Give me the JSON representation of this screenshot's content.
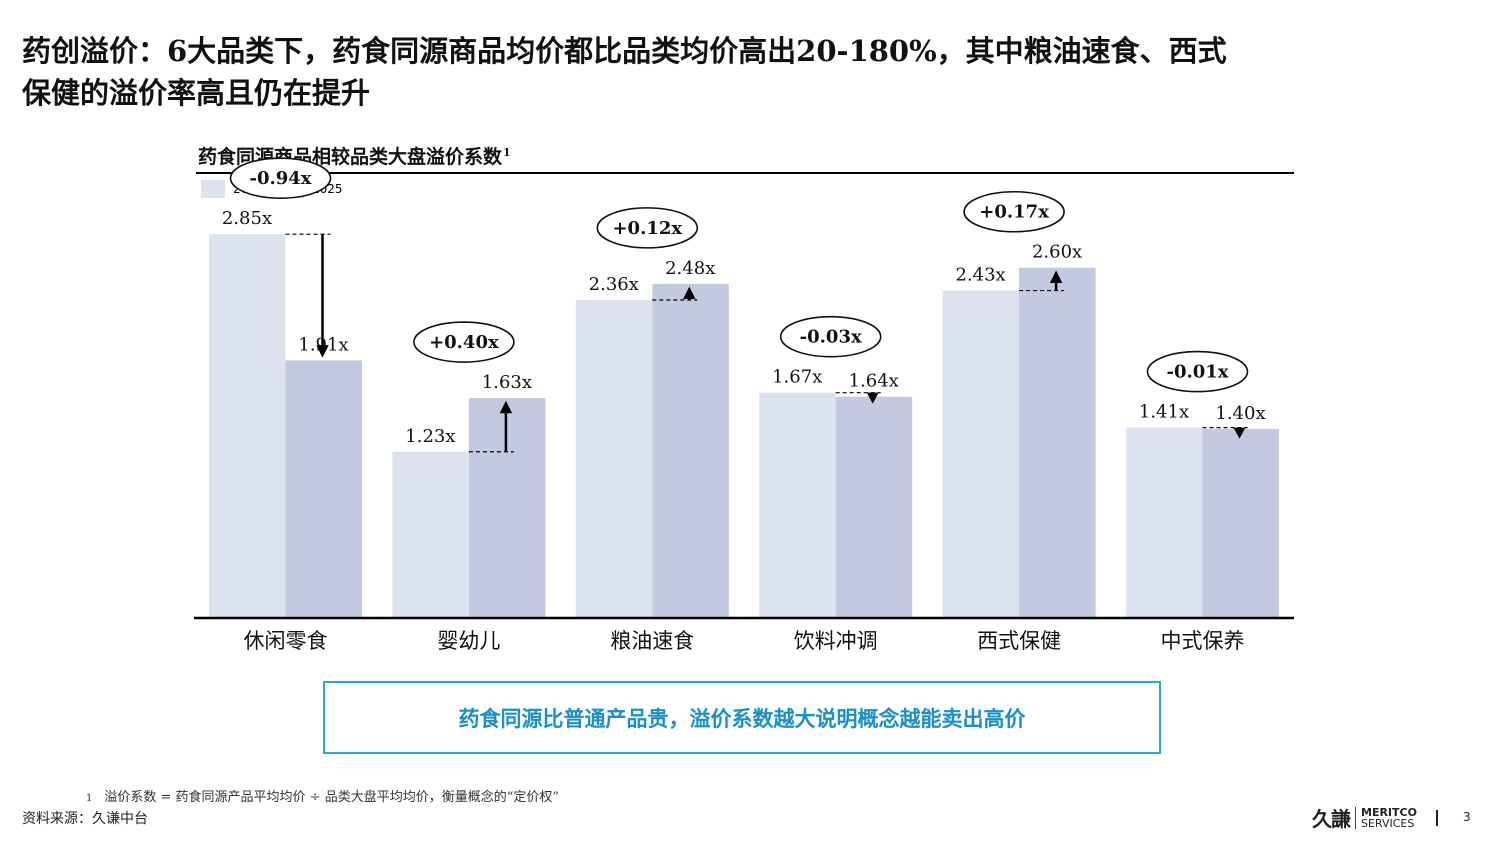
{
  "headline": {
    "line1": "药创溢价：6大品类下，药食同源商品均价都比品类均价高出20-180%，其中粮油速食、西式",
    "line2": "保健的溢价率高且仍在提升"
  },
  "chart_title": "药食同源商品相较品类大盘溢价系数",
  "chart_title_footnote_mark": "1",
  "chart_data": {
    "type": "bar",
    "categories": [
      "休闲零食",
      "婴幼儿",
      "粮油速食",
      "饮料冲调",
      "西式保健",
      "中式保养"
    ],
    "series": [
      {
        "name": "2023",
        "values": [
          2.85,
          1.23,
          2.36,
          1.67,
          2.43,
          1.41
        ],
        "labels": [
          "2.85x",
          "1.23x",
          "2.36x",
          "1.67x",
          "2.43x",
          "1.41x"
        ],
        "color": "#dde3ee"
      },
      {
        "name": "2025",
        "values": [
          1.91,
          1.63,
          2.48,
          1.64,
          2.6,
          1.4
        ],
        "labels": [
          "1.91x",
          "1.63x",
          "2.48x",
          "1.64x",
          "2.60x",
          "1.40x"
        ],
        "color": "#c1cade"
      }
    ],
    "changes": [
      "-0.94x",
      "+0.40x",
      "+0.12x",
      "-0.03x",
      "+0.17x",
      "-0.01x"
    ],
    "ylim": [
      0,
      3.35
    ],
    "grid": false,
    "legend_position": "top-left",
    "xlabel": "",
    "ylabel": ""
  },
  "callout_text": "药食同源比普通产品贵，溢价系数越大说明概念越能卖出高价",
  "footnote": {
    "mark": "1",
    "text": "溢价系数 = 药食同源产品平均均价 ÷ 品类大盘平均均价，衡量概念的“定价权”"
  },
  "source": "资料来源：久谦中台",
  "logo": {
    "cn": "久謙",
    "en_line1": "MERITCO",
    "en_line2": "SERVICES"
  },
  "page_number": "3"
}
